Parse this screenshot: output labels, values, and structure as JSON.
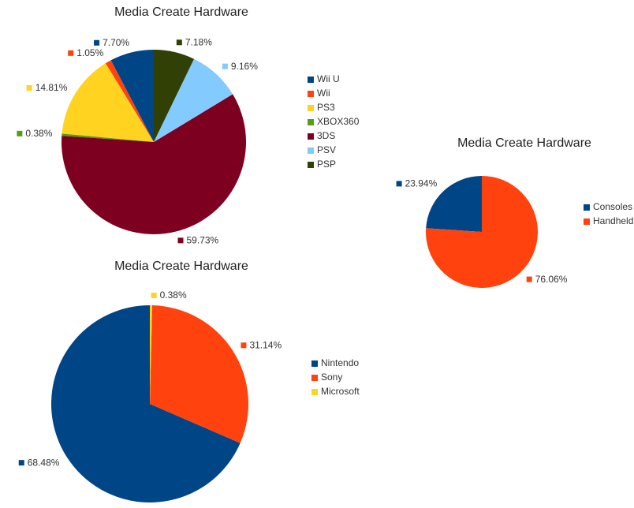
{
  "chart_data": [
    {
      "type": "pie",
      "title": "Media Create Hardware",
      "categories": [
        "Wii U",
        "Wii",
        "PS3",
        "XBOX360",
        "3DS",
        "PSV",
        "PSP"
      ],
      "values": [
        7.7,
        1.05,
        14.81,
        0.38,
        59.73,
        9.16,
        7.18
      ],
      "value_labels": [
        "7.70%",
        "1.05%",
        "14.81%",
        "0.38%",
        "59.73%",
        "9.16%",
        "7.18%"
      ],
      "colors": [
        "#004586",
        "#ff420e",
        "#ffd320",
        "#579d1c",
        "#7e0021",
        "#83caff",
        "#314004"
      ]
    },
    {
      "type": "pie",
      "title": "Media Create Hardware",
      "categories": [
        "Consoles",
        "Handheld"
      ],
      "values": [
        23.94,
        76.06
      ],
      "value_labels": [
        "23.94%",
        "76.06%"
      ],
      "colors": [
        "#004586",
        "#ff420e"
      ]
    },
    {
      "type": "pie",
      "title": "Media Create Hardware",
      "categories": [
        "Nintendo",
        "Sony",
        "Microsoft"
      ],
      "values": [
        68.48,
        31.14,
        0.38
      ],
      "value_labels": [
        "68.48%",
        "31.14%",
        "0.38%"
      ],
      "colors": [
        "#004586",
        "#ff420e",
        "#ffd320"
      ]
    }
  ]
}
